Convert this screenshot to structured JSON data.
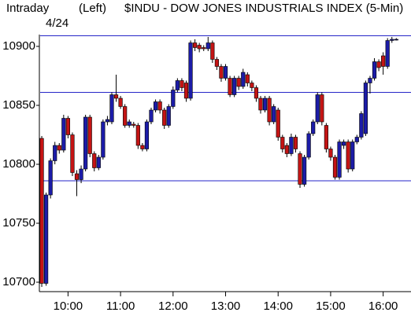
{
  "chart_data": {
    "type": "candlestick",
    "header_left": "Intraday",
    "header_mode": "(Left)",
    "title": "$INDU - DOW JONES INDUSTRIALS INDEX (5-Min)",
    "date_label": "4/24",
    "x": [
      0,
      1,
      2,
      3,
      4,
      5,
      6,
      7,
      8,
      9,
      10,
      11,
      12,
      13,
      14,
      15,
      16,
      17,
      18,
      19,
      20,
      21,
      22,
      23,
      24,
      25,
      26,
      27,
      28,
      29,
      30,
      31,
      32,
      33,
      34,
      35,
      36,
      37,
      38,
      39,
      40,
      41,
      42,
      43,
      44,
      45,
      46,
      47,
      48,
      49,
      50,
      51,
      52,
      53,
      54,
      55,
      56,
      57,
      58,
      59,
      60,
      61,
      62,
      63,
      64,
      65,
      66,
      67,
      68,
      69,
      70,
      71,
      72,
      73,
      74,
      75,
      76,
      77,
      78,
      79,
      80,
      81
    ],
    "open": [
      10822,
      10699,
      10774,
      10803,
      10816,
      10812,
      10839,
      10825,
      10792,
      10787,
      10796,
      10840,
      10809,
      10797,
      10806,
      10836,
      10836,
      10859,
      10856,
      10849,
      10833,
      10834,
      10833,
      10816,
      10813,
      10836,
      10846,
      10853,
      10846,
      10833,
      10849,
      10863,
      10871,
      10869,
      10856,
      10903,
      10901,
      10899,
      10898,
      10903,
      10889,
      10883,
      10873,
      10873,
      10859,
      10873,
      10866,
      10876,
      10869,
      10865,
      10856,
      10846,
      10856,
      10836,
      10846,
      10823,
      10816,
      10809,
      10823,
      10809,
      10783,
      10806,
      10826,
      10836,
      10859,
      10833,
      10813,
      10806,
      10789,
      10816,
      10819,
      10796,
      10819,
      10823,
      10826,
      10869,
      10873,
      10887,
      10892,
      10883,
      10905,
      10906
    ],
    "high": [
      10824,
      10776,
      10805,
      10819,
      10818,
      10842,
      10841,
      10827,
      10795,
      10799,
      10842,
      10842,
      10811,
      10808,
      10838,
      10841,
      10861,
      10876,
      10858,
      10851,
      10838,
      10836,
      10835,
      10818,
      10838,
      10848,
      10855,
      10855,
      10848,
      10851,
      10866,
      10873,
      10873,
      10871,
      10905,
      10906,
      10903,
      10901,
      10908,
      10905,
      10891,
      10885,
      10885,
      10875,
      10875,
      10875,
      10881,
      10878,
      10871,
      10867,
      10858,
      10858,
      10858,
      10851,
      10848,
      10825,
      10818,
      10826,
      10825,
      10811,
      10808,
      10828,
      10838,
      10861,
      10861,
      10835,
      10815,
      10808,
      10821,
      10821,
      10821,
      10821,
      10825,
      10845,
      10871,
      10875,
      10890,
      10889,
      10895,
      10907,
      10908,
      10907
    ],
    "low": [
      10696,
      10697,
      10771,
      10800,
      10809,
      10810,
      10822,
      10790,
      10773,
      10784,
      10794,
      10806,
      10794,
      10795,
      10804,
      10833,
      10834,
      10853,
      10847,
      10831,
      10831,
      10831,
      10813,
      10811,
      10811,
      10834,
      10844,
      10843,
      10830,
      10831,
      10847,
      10861,
      10862,
      10853,
      10854,
      10896,
      10895,
      10896,
      10896,
      10886,
      10880,
      10870,
      10871,
      10857,
      10857,
      10863,
      10864,
      10866,
      10862,
      10853,
      10843,
      10844,
      10833,
      10834,
      10820,
      10810,
      10806,
      10807,
      10810,
      10780,
      10781,
      10804,
      10824,
      10834,
      10833,
      10810,
      10803,
      10787,
      10787,
      10813,
      10793,
      10794,
      10817,
      10821,
      10824,
      10860,
      10871,
      10879,
      10876,
      10881,
      10903,
      10905
    ],
    "close": [
      10699,
      10774,
      10803,
      10816,
      10812,
      10839,
      10825,
      10793,
      10787,
      10796,
      10840,
      10809,
      10797,
      10806,
      10836,
      10838,
      10859,
      10856,
      10849,
      10833,
      10836,
      10833,
      10816,
      10813,
      10836,
      10846,
      10853,
      10846,
      10833,
      10849,
      10863,
      10871,
      10865,
      10856,
      10903,
      10899,
      10898,
      10898,
      10903,
      10889,
      10883,
      10873,
      10883,
      10859,
      10873,
      10866,
      10878,
      10869,
      10865,
      10856,
      10846,
      10856,
      10836,
      10849,
      10823,
      10813,
      10809,
      10823,
      10813,
      10783,
      10806,
      10826,
      10836,
      10859,
      10836,
      10813,
      10806,
      10789,
      10819,
      10819,
      10796,
      10819,
      10823,
      10843,
      10869,
      10873,
      10887,
      10882,
      10883,
      10905,
      10906,
      10906
    ],
    "up_color": "#1c1ca8",
    "down_color": "#c41414",
    "hlines": [
      10909,
      10861,
      10786
    ],
    "hline_color": "#2626c8",
    "xlim": [
      -0.6,
      84
    ],
    "xticks": [
      {
        "value": 6,
        "label": "10:00"
      },
      {
        "value": 18,
        "label": "11:00"
      },
      {
        "value": 30,
        "label": "12:00"
      },
      {
        "value": 42,
        "label": "13:00"
      },
      {
        "value": 54,
        "label": "14:00"
      },
      {
        "value": 66,
        "label": "15:00"
      },
      {
        "value": 78,
        "label": "16:00"
      }
    ],
    "ylim": [
      10692,
      10910
    ],
    "yticks": [
      10700,
      10750,
      10800,
      10850,
      10900
    ]
  }
}
